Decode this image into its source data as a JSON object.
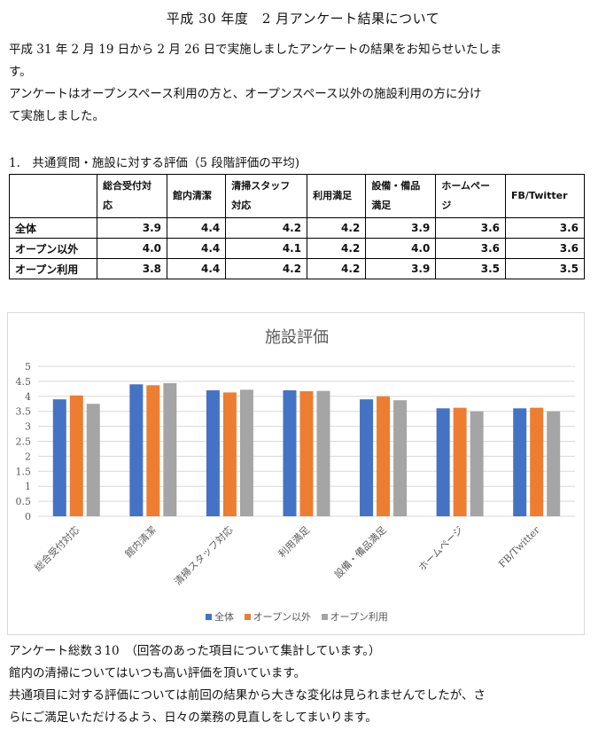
{
  "title": "平成 30 年度　2 月アンケート結果について",
  "intro": [
    "平成 31 年 2 月 19 日から 2 月 26 日で実施しましたアンケートの結果をお知らせいたしま",
    "す。",
    "アンケートはオープンスペース利用の方と、オープンスペース以外の施設利用の方に分け",
    "て実施しました。"
  ],
  "section1": "1.　共通質問・施設に対する評価（5 段階評価の平均)",
  "table": {
    "headers": [
      [
        "",
        ""
      ],
      [
        "総合受付対",
        "応"
      ],
      [
        "館内清潔",
        ""
      ],
      [
        "清掃スタッフ",
        "対応"
      ],
      [
        "利用満足",
        ""
      ],
      [
        "設備・備品",
        "満足"
      ],
      [
        "ホームペー",
        "ジ"
      ],
      [
        "FB/Twitter",
        ""
      ]
    ],
    "rows": [
      {
        "label": "全体",
        "values": [
          "3.9",
          "4.4",
          "4.2",
          "4.2",
          "3.9",
          "3.6",
          "3.6"
        ]
      },
      {
        "label": "オープン以外",
        "values": [
          "4.0",
          "4.4",
          "4.1",
          "4.2",
          "4.0",
          "3.6",
          "3.6"
        ]
      },
      {
        "label": "オープン利用",
        "values": [
          "3.8",
          "4.4",
          "4.2",
          "4.2",
          "3.9",
          "3.5",
          "3.5"
        ]
      }
    ]
  },
  "chart_data": {
    "type": "bar",
    "title": "施設評価",
    "categories": [
      "総合受付対応",
      "館内清潔",
      "清掃スタッフ対応",
      "利用満足",
      "設備・備品満足",
      "ホームページ",
      "FB/Twitter"
    ],
    "series": [
      {
        "name": "全体",
        "color": "#4472c4",
        "values": [
          3.9,
          4.4,
          4.2,
          4.2,
          3.9,
          3.6,
          3.6
        ]
      },
      {
        "name": "オープン以外",
        "color": "#ed7d31",
        "values": [
          4.03,
          4.37,
          4.13,
          4.17,
          4.0,
          3.62,
          3.62
        ]
      },
      {
        "name": "オープン利用",
        "color": "#a5a5a5",
        "values": [
          3.75,
          4.44,
          4.22,
          4.18,
          3.87,
          3.5,
          3.5
        ]
      }
    ],
    "ylim": [
      0,
      5
    ],
    "yticks": [
      "0",
      "0.5",
      "1",
      "1.5",
      "2",
      "2.5",
      "3",
      "3.5",
      "4",
      "4.5",
      "5"
    ],
    "grid": true,
    "legend": "bottom"
  },
  "outro": [
    "アンケート総数３10　（回答のあった項目について集計しています。）",
    "館内の清掃についてはいつも高い評価を頂いています。",
    "共通項目に対する評価については前回の結果から大きな変化は見られませんでしたが、さ",
    "らにご満足いただけるよう、日々の業務の見直しをしてまいります。"
  ]
}
